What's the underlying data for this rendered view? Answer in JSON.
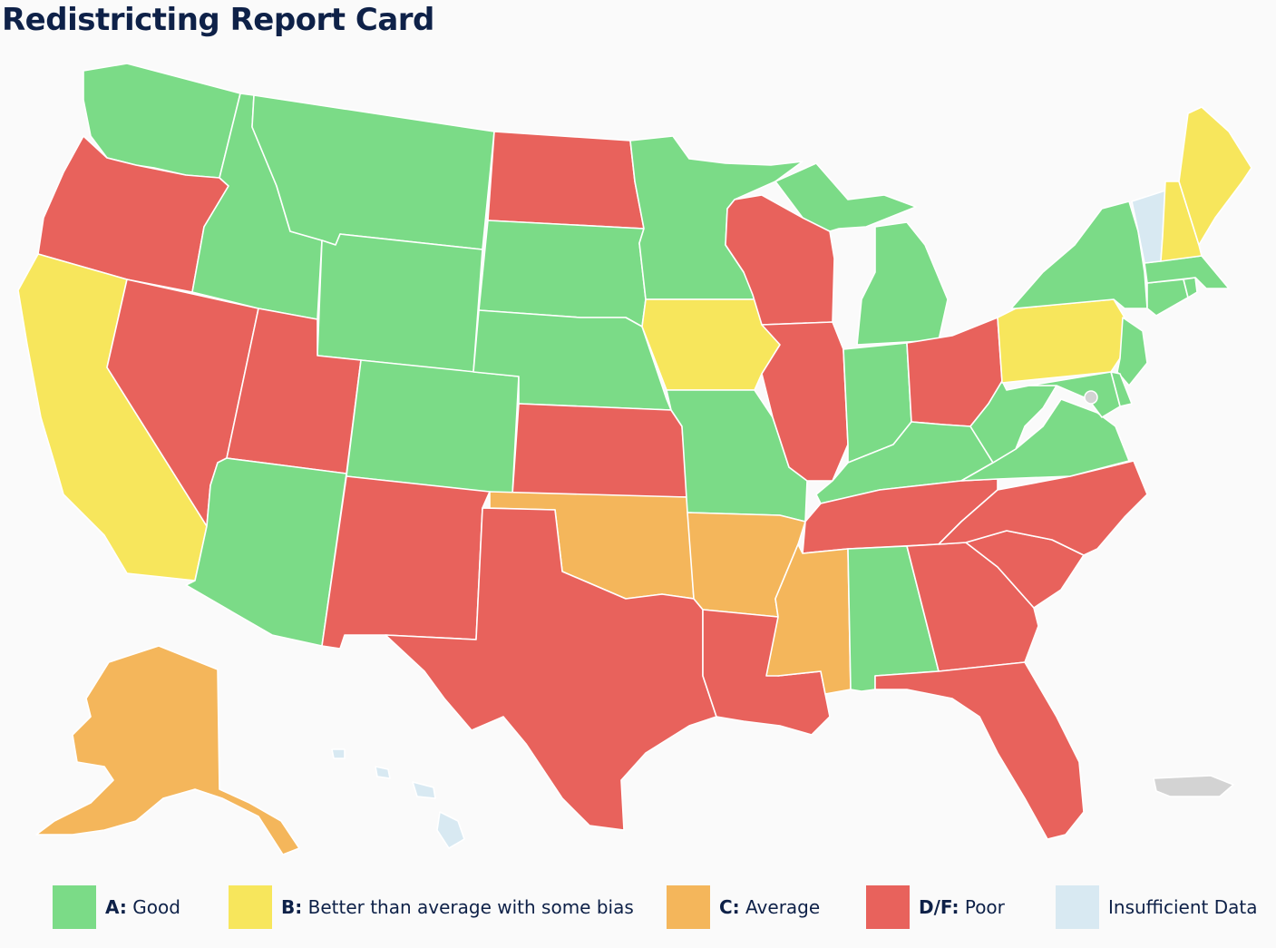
{
  "title": "Redistricting Report Card",
  "colors": {
    "good": "#7bdb87",
    "better": "#f7e65c",
    "average": "#f4b65b",
    "poor": "#e8625c",
    "insufficient": "#d8e9f2",
    "territory": "#d3d3d3"
  },
  "legend": [
    {
      "grade": "A:",
      "label": "Good",
      "color_key": "good"
    },
    {
      "grade": "B:",
      "label": "Better than average with some bias",
      "color_key": "better"
    },
    {
      "grade": "C:",
      "label": "Average",
      "color_key": "average"
    },
    {
      "grade": "D/F:",
      "label": "Poor",
      "color_key": "poor"
    },
    {
      "grade": "",
      "label": "Insufficient Data",
      "color_key": "insufficient"
    }
  ],
  "states": {
    "WA": "good",
    "OR": "poor",
    "CA": "better",
    "NV": "poor",
    "ID": "good",
    "MT": "good",
    "WY": "good",
    "UT": "poor",
    "AZ": "good",
    "CO": "good",
    "NM": "poor",
    "ND": "poor",
    "SD": "good",
    "NE": "good",
    "KS": "poor",
    "OK": "average",
    "TX": "poor",
    "MN": "good",
    "IA": "better",
    "MO": "good",
    "AR": "average",
    "LA": "poor",
    "WI": "poor",
    "IL": "poor",
    "MI": "good",
    "IN": "good",
    "OH": "poor",
    "KY": "good",
    "TN": "poor",
    "MS": "average",
    "AL": "good",
    "GA": "poor",
    "FL": "poor",
    "SC": "poor",
    "NC": "poor",
    "VA": "good",
    "WV": "good",
    "PA": "better",
    "NY": "good",
    "NJ": "good",
    "DE": "good",
    "MD": "good",
    "DC": "territory",
    "CT": "good",
    "RI": "good",
    "MA": "good",
    "VT": "insufficient",
    "NH": "better",
    "ME": "better",
    "AK": "average",
    "HI": "insufficient",
    "PR": "territory"
  }
}
